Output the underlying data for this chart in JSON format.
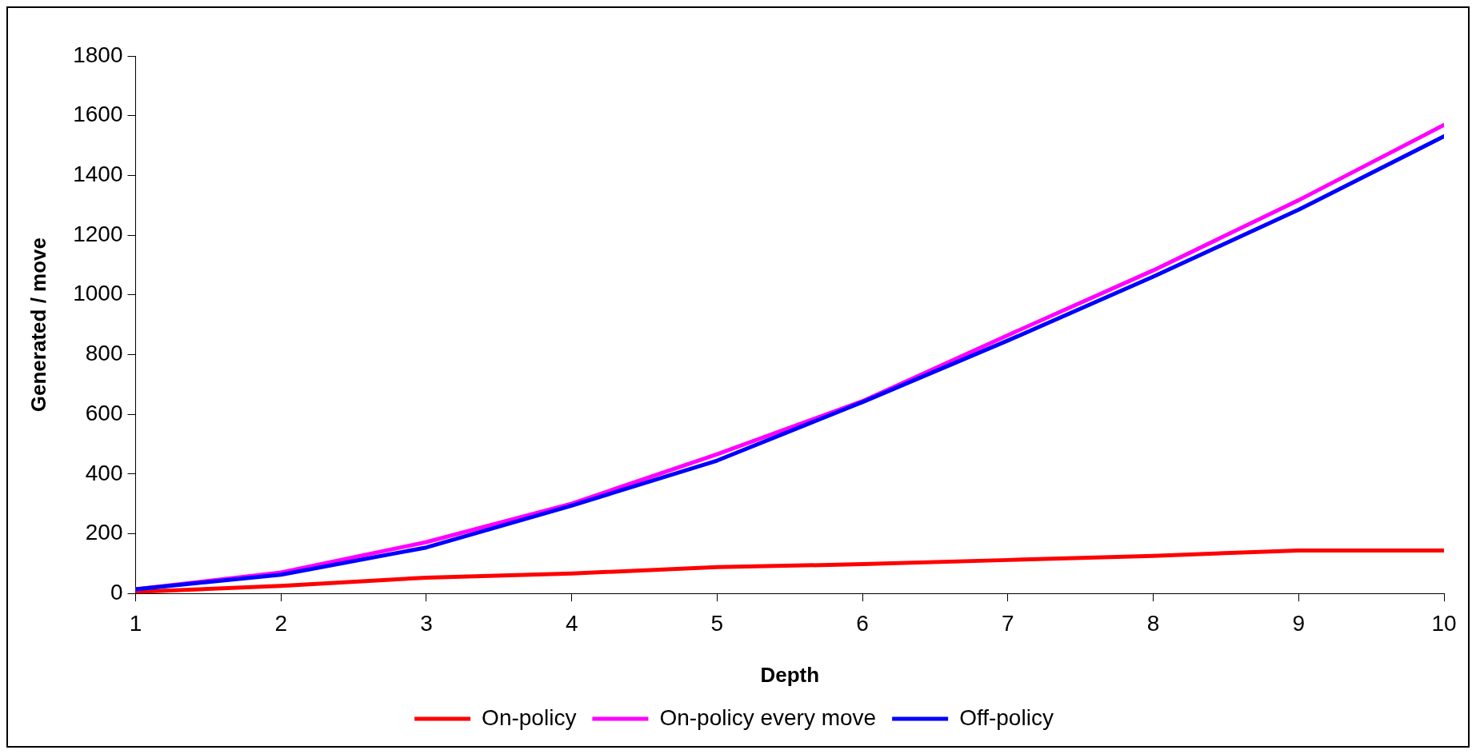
{
  "chart_data": {
    "type": "line",
    "xlabel": "Depth",
    "ylabel": "Generated / move",
    "x": [
      1,
      2,
      3,
      4,
      5,
      6,
      7,
      8,
      9,
      10
    ],
    "xlim": [
      1,
      10
    ],
    "xticks": [
      1,
      2,
      3,
      4,
      5,
      6,
      7,
      8,
      9,
      10
    ],
    "ylim": [
      0,
      1800
    ],
    "yticks": [
      0,
      200,
      400,
      600,
      800,
      1000,
      1200,
      1400,
      1600,
      1800
    ],
    "grid": false,
    "legend": "bottom",
    "marker": "none",
    "line_style": "solid",
    "series": [
      {
        "name": "On-policy",
        "color": "#ff0000",
        "values": [
          5,
          25,
          53,
          67,
          88,
          98,
          112,
          126,
          144,
          144
        ]
      },
      {
        "name": "On-policy every move",
        "color": "#ff00ff",
        "values": [
          14,
          70,
          172,
          301,
          466,
          644,
          865,
          1082,
          1317,
          1569
        ]
      },
      {
        "name": "Off-policy",
        "color": "#0000ff",
        "values": [
          14,
          63,
          154,
          294,
          445,
          641,
          847,
          1061,
          1285,
          1531
        ]
      }
    ]
  }
}
